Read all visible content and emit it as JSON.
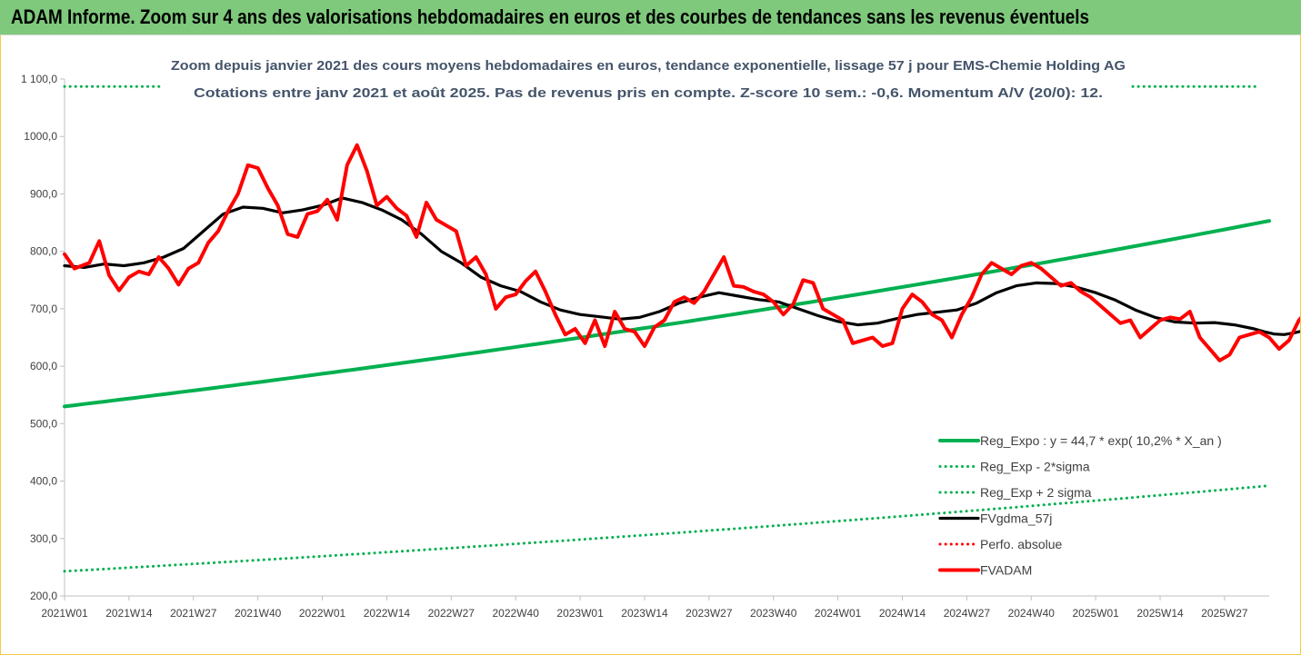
{
  "header": {
    "title": "ADAM Informe. Zoom sur 4 ans des valorisations hebdomadaires en euros et des courbes de tendances sans les revenus éventuels"
  },
  "chart_data": {
    "type": "line",
    "subtitle_line1": "Zoom depuis janvier 2021 des cours moyens hebdomadaires en euros, tendance exponentielle, lissage 57 j pour EMS-Chemie Holding AG",
    "subtitle_line2": "Cotations entre janv 2021 et août 2025.  Pas de revenus pris en compte. Z-score 10 sem.: -0,6. Momentum A/V (20/0): 12.",
    "ylim": [
      200,
      1100
    ],
    "y_ticks": [
      "200,0",
      "300,0",
      "400,0",
      "500,0",
      "600,0",
      "700,0",
      "800,0",
      "900,0",
      "1000,0",
      "1 100,0"
    ],
    "x_ticks": [
      "2021W01",
      "2021W14",
      "2021W27",
      "2021W40",
      "2022W01",
      "2022W14",
      "2022W27",
      "2022W40",
      "2023W01",
      "2023W14",
      "2023W27",
      "2023W40",
      "2024W01",
      "2024W14",
      "2024W27",
      "2024W40",
      "2025W01",
      "2025W14",
      "2025W27"
    ],
    "x_range_weeks": [
      0,
      243
    ],
    "legend_position": "bottom-right",
    "series": [
      {
        "name": "Reg_Expo : y = 44,7 * exp( 10,2% *  X_an )",
        "color": "#00b050",
        "style": "solid",
        "points": [
          [
            0,
            530
          ],
          [
            60,
            586
          ],
          [
            120,
            645
          ],
          [
            180,
            712
          ],
          [
            243,
            853
          ]
        ]
      },
      {
        "name": "Reg_Exp - 2*sigma",
        "color": "#00b050",
        "style": "dotted",
        "points": [
          [
            0,
            243
          ],
          [
            60,
            268
          ],
          [
            120,
            296
          ],
          [
            180,
            326
          ],
          [
            243,
            392
          ]
        ]
      },
      {
        "name": "Reg_Exp + 2 sigma",
        "color": "#00b050",
        "style": "dotted",
        "points": [
          [
            0,
            1087
          ],
          [
            20,
            1087
          ]
        ]
      },
      {
        "name": "FVgdma_57j",
        "color": "#000000",
        "style": "solid",
        "points": [
          [
            0,
            775
          ],
          [
            4,
            772
          ],
          [
            8,
            778
          ],
          [
            12,
            775
          ],
          [
            16,
            780
          ],
          [
            20,
            790
          ],
          [
            24,
            805
          ],
          [
            28,
            835
          ],
          [
            32,
            865
          ],
          [
            36,
            877
          ],
          [
            40,
            875
          ],
          [
            44,
            867
          ],
          [
            48,
            872
          ],
          [
            52,
            880
          ],
          [
            56,
            893
          ],
          [
            60,
            885
          ],
          [
            64,
            872
          ],
          [
            68,
            855
          ],
          [
            72,
            830
          ],
          [
            76,
            800
          ],
          [
            80,
            780
          ],
          [
            84,
            755
          ],
          [
            88,
            740
          ],
          [
            92,
            730
          ],
          [
            96,
            712
          ],
          [
            100,
            698
          ],
          [
            104,
            690
          ],
          [
            108,
            686
          ],
          [
            112,
            682
          ],
          [
            116,
            685
          ],
          [
            120,
            695
          ],
          [
            124,
            710
          ],
          [
            128,
            720
          ],
          [
            132,
            728
          ],
          [
            136,
            722
          ],
          [
            140,
            716
          ],
          [
            144,
            712
          ],
          [
            148,
            700
          ],
          [
            152,
            688
          ],
          [
            156,
            678
          ],
          [
            160,
            672
          ],
          [
            164,
            675
          ],
          [
            168,
            683
          ],
          [
            172,
            690
          ],
          [
            176,
            694
          ],
          [
            180,
            698
          ],
          [
            184,
            710
          ],
          [
            188,
            728
          ],
          [
            192,
            740
          ],
          [
            196,
            745
          ],
          [
            200,
            744
          ],
          [
            204,
            738
          ],
          [
            208,
            728
          ],
          [
            212,
            715
          ],
          [
            216,
            698
          ],
          [
            220,
            685
          ],
          [
            224,
            677
          ],
          [
            228,
            675
          ],
          [
            232,
            676
          ],
          [
            236,
            672
          ],
          [
            240,
            665
          ],
          [
            242,
            660
          ],
          [
            243,
            658
          ],
          [
            244,
            656
          ],
          [
            246,
            655
          ],
          [
            248,
            658
          ],
          [
            250,
            662
          ],
          [
            252,
            664
          ],
          [
            254,
            665
          ],
          [
            256,
            666
          ],
          [
            258,
            667
          ]
        ]
      },
      {
        "name": "Perfo. absolue",
        "color": "#ff0000",
        "style": "dotted",
        "points": []
      },
      {
        "name": "FVADAM",
        "color": "#ff0000",
        "style": "solid",
        "points": [
          [
            0,
            795
          ],
          [
            2,
            770
          ],
          [
            5,
            780
          ],
          [
            7,
            818
          ],
          [
            9,
            758
          ],
          [
            11,
            732
          ],
          [
            13,
            755
          ],
          [
            15,
            765
          ],
          [
            17,
            760
          ],
          [
            19,
            790
          ],
          [
            21,
            770
          ],
          [
            23,
            742
          ],
          [
            25,
            770
          ],
          [
            27,
            780
          ],
          [
            29,
            815
          ],
          [
            31,
            835
          ],
          [
            33,
            870
          ],
          [
            35,
            900
          ],
          [
            37,
            950
          ],
          [
            39,
            945
          ],
          [
            41,
            910
          ],
          [
            43,
            880
          ],
          [
            45,
            830
          ],
          [
            47,
            825
          ],
          [
            49,
            865
          ],
          [
            51,
            870
          ],
          [
            53,
            890
          ],
          [
            55,
            855
          ],
          [
            57,
            950
          ],
          [
            59,
            985
          ],
          [
            61,
            940
          ],
          [
            63,
            880
          ],
          [
            65,
            895
          ],
          [
            67,
            875
          ],
          [
            69,
            862
          ],
          [
            71,
            825
          ],
          [
            73,
            885
          ],
          [
            75,
            855
          ],
          [
            77,
            845
          ],
          [
            79,
            835
          ],
          [
            81,
            775
          ],
          [
            83,
            790
          ],
          [
            85,
            760
          ],
          [
            87,
            700
          ],
          [
            89,
            720
          ],
          [
            91,
            725
          ],
          [
            93,
            748
          ],
          [
            95,
            765
          ],
          [
            97,
            730
          ],
          [
            99,
            690
          ],
          [
            101,
            655
          ],
          [
            103,
            665
          ],
          [
            105,
            640
          ],
          [
            107,
            680
          ],
          [
            109,
            635
          ],
          [
            111,
            695
          ],
          [
            113,
            665
          ],
          [
            115,
            660
          ],
          [
            117,
            635
          ],
          [
            119,
            668
          ],
          [
            121,
            680
          ],
          [
            123,
            712
          ],
          [
            125,
            720
          ],
          [
            127,
            710
          ],
          [
            129,
            730
          ],
          [
            131,
            760
          ],
          [
            133,
            790
          ],
          [
            135,
            740
          ],
          [
            137,
            738
          ],
          [
            139,
            730
          ],
          [
            141,
            725
          ],
          [
            143,
            712
          ],
          [
            145,
            690
          ],
          [
            147,
            708
          ],
          [
            149,
            750
          ],
          [
            151,
            745
          ],
          [
            153,
            700
          ],
          [
            155,
            690
          ],
          [
            157,
            680
          ],
          [
            159,
            640
          ],
          [
            161,
            645
          ],
          [
            163,
            650
          ],
          [
            165,
            635
          ],
          [
            167,
            640
          ],
          [
            169,
            700
          ],
          [
            171,
            725
          ],
          [
            173,
            712
          ],
          [
            175,
            690
          ],
          [
            177,
            680
          ],
          [
            179,
            650
          ],
          [
            181,
            690
          ],
          [
            183,
            720
          ],
          [
            185,
            760
          ],
          [
            187,
            780
          ],
          [
            189,
            770
          ],
          [
            191,
            760
          ],
          [
            193,
            775
          ],
          [
            195,
            780
          ],
          [
            197,
            770
          ],
          [
            199,
            755
          ],
          [
            201,
            740
          ],
          [
            203,
            745
          ],
          [
            205,
            730
          ],
          [
            207,
            720
          ],
          [
            209,
            705
          ],
          [
            211,
            690
          ],
          [
            213,
            675
          ],
          [
            215,
            680
          ],
          [
            217,
            650
          ],
          [
            219,
            665
          ],
          [
            221,
            680
          ],
          [
            223,
            685
          ],
          [
            225,
            682
          ],
          [
            227,
            695
          ],
          [
            229,
            650
          ],
          [
            231,
            630
          ],
          [
            233,
            610
          ],
          [
            235,
            620
          ],
          [
            237,
            650
          ],
          [
            239,
            655
          ],
          [
            241,
            660
          ],
          [
            243,
            650
          ],
          [
            245,
            630
          ],
          [
            247,
            645
          ],
          [
            249,
            680
          ],
          [
            251,
            700
          ],
          [
            253,
            695
          ],
          [
            255,
            660
          ],
          [
            257,
            670
          ]
        ]
      }
    ]
  }
}
